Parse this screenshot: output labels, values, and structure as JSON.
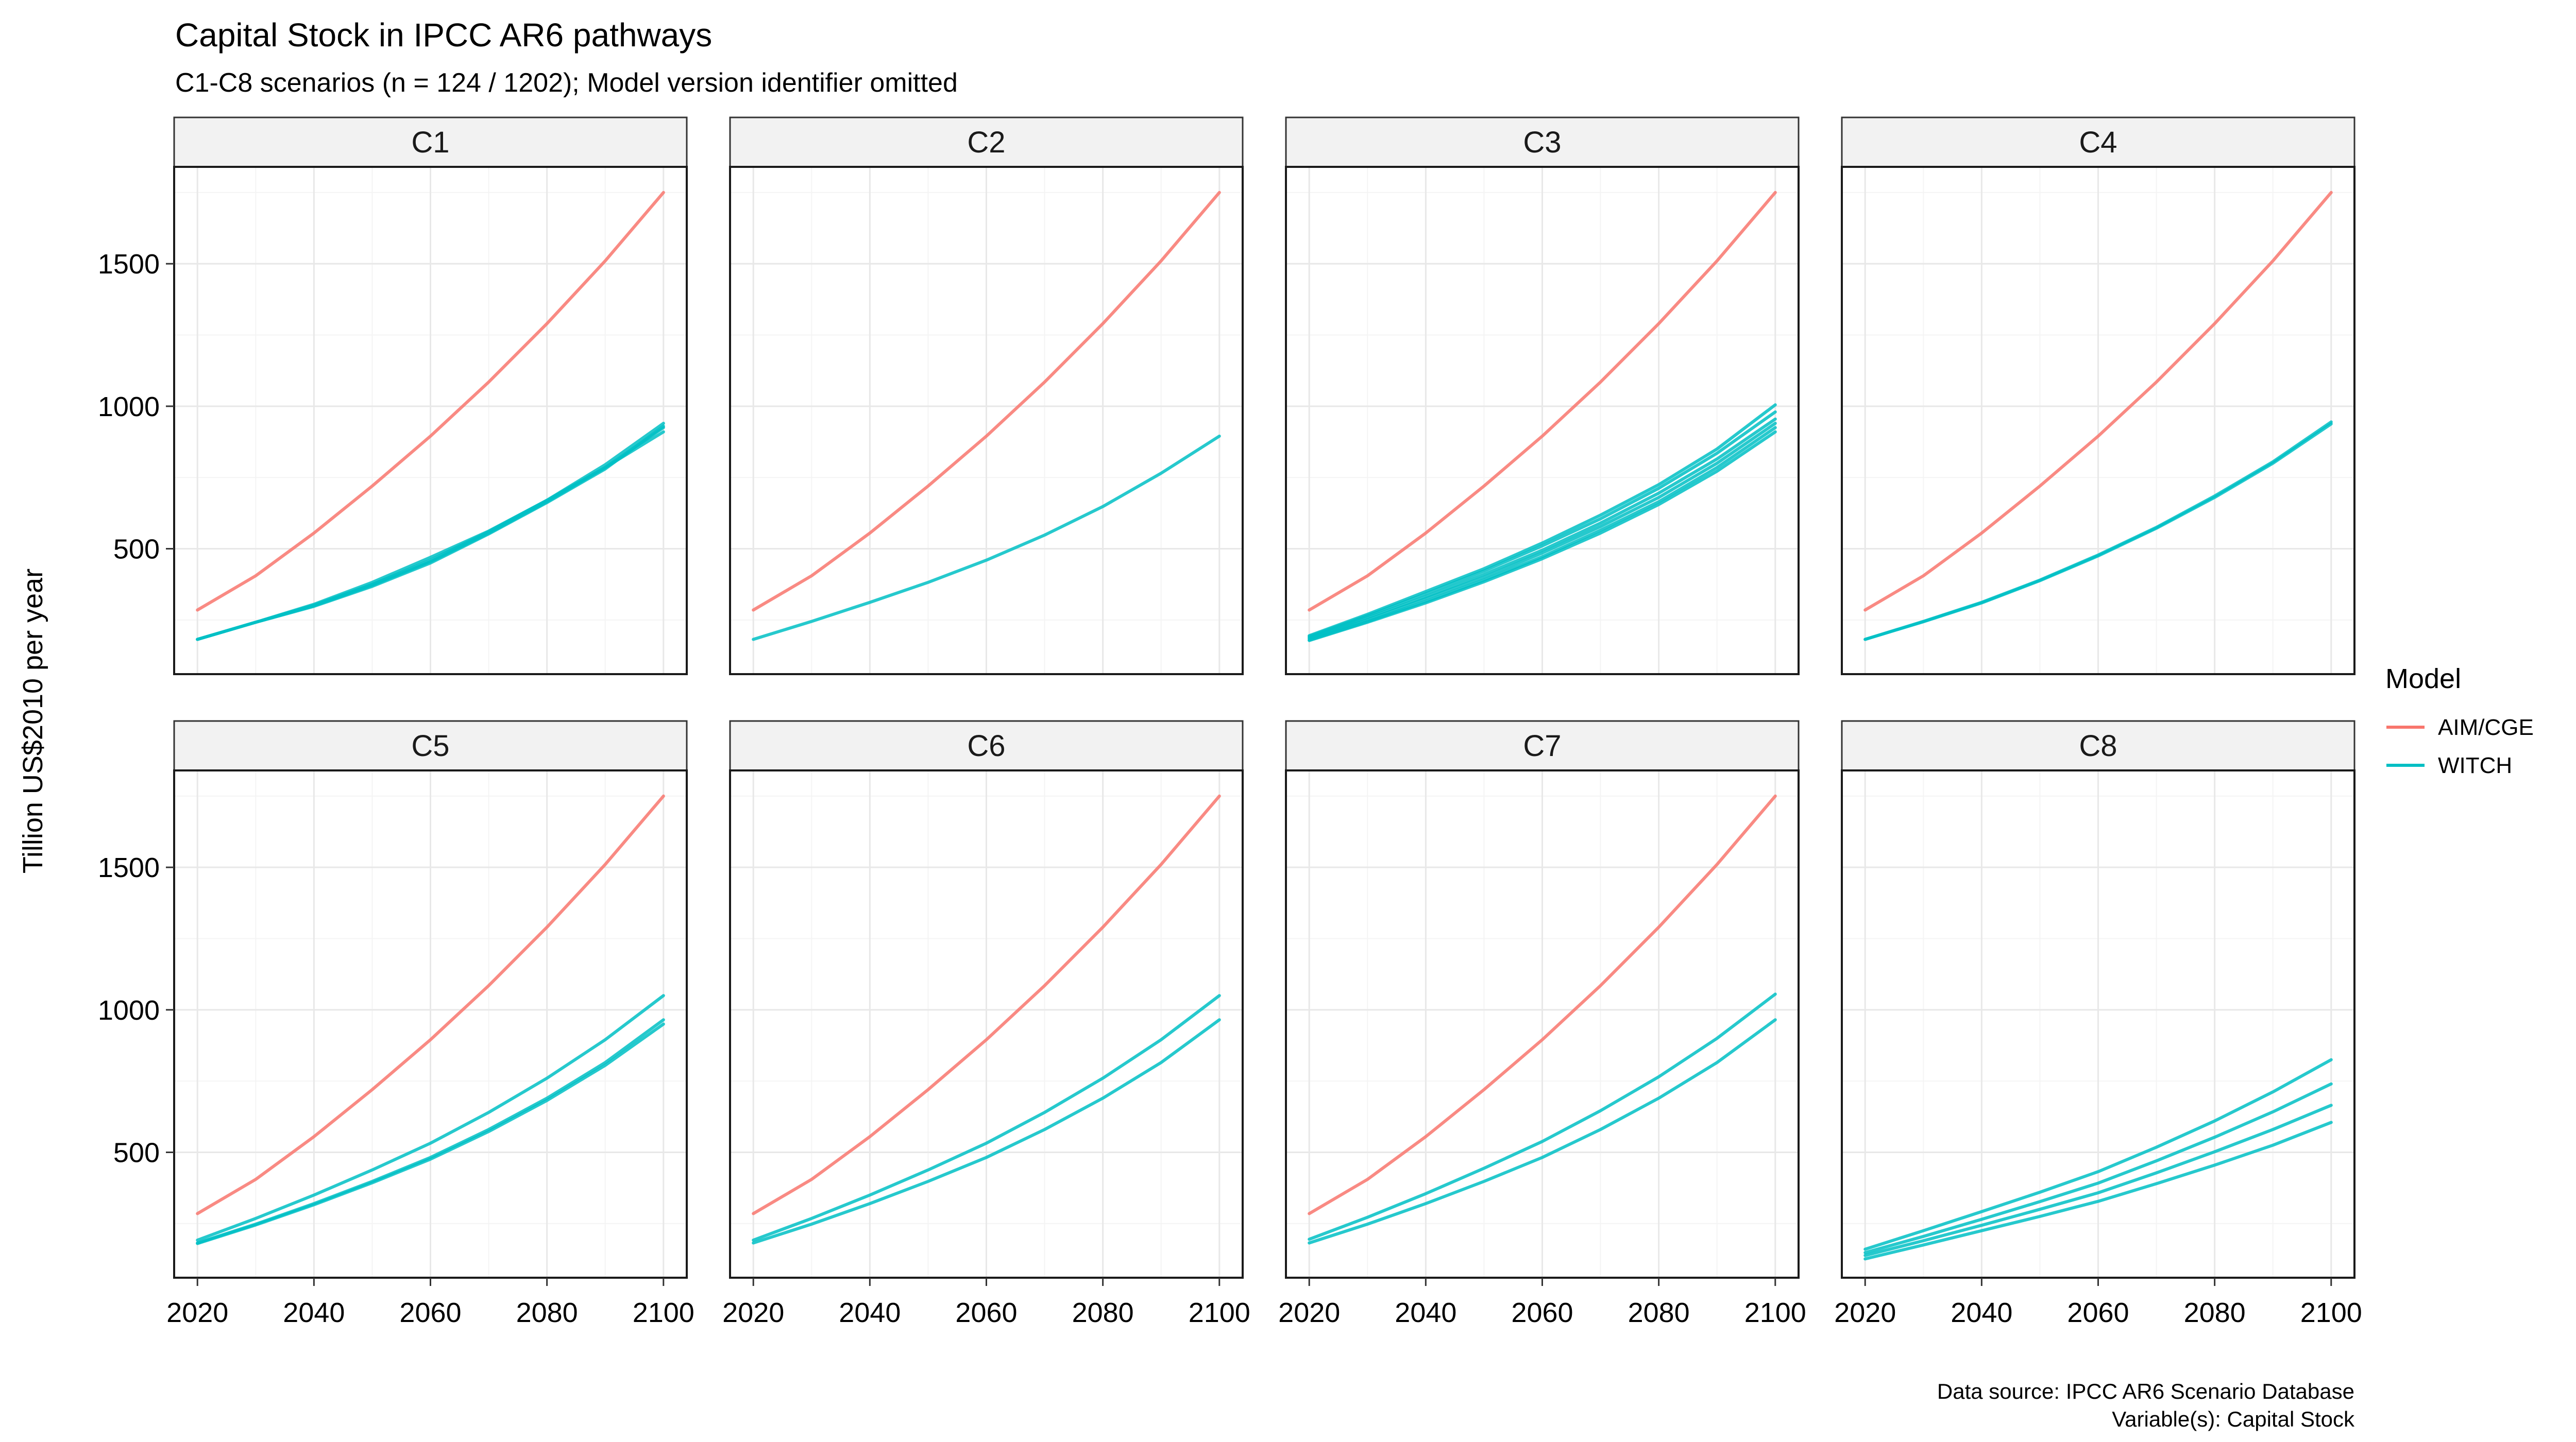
{
  "chart_data": {
    "type": "line",
    "title": "Capital Stock in IPCC AR6 pathways",
    "subtitle": "C1-C8 scenarios (n = 124 / 1202); Model version identifier omitted",
    "ylabel": "Tillion US$2010 per year",
    "xlabel": "",
    "x": [
      2020,
      2030,
      2040,
      2050,
      2060,
      2070,
      2080,
      2090,
      2100
    ],
    "xlim": [
      2016,
      2104
    ],
    "ylim": [
      60,
      1840
    ],
    "xticks": [
      "2020",
      "2040",
      "2060",
      "2080",
      "2100"
    ],
    "yticks": [
      "500",
      "1000",
      "1500"
    ],
    "grid": true,
    "legend": {
      "title": "Model",
      "placement": "right",
      "entries": [
        {
          "name": "AIM/CGE",
          "color": "#F8766D"
        },
        {
          "name": "WITCH",
          "color": "#00BFC4"
        }
      ]
    },
    "caption": [
      "Data source: IPCC AR6 Scenario Database",
      "Variable(s): Capital Stock"
    ],
    "panels": [
      {
        "label": "C1",
        "series": [
          {
            "model": "AIM/CGE",
            "values": [
              285,
              405,
              555,
              720,
              895,
              1085,
              1290,
              1510,
              1750
            ]
          },
          {
            "model": "WITCH",
            "values": [
              182,
              242,
              302,
              375,
              460,
              560,
              670,
              795,
              940
            ]
          },
          {
            "model": "WITCH",
            "values": [
              182,
              242,
              300,
              372,
              455,
              555,
              665,
              785,
              925
            ]
          },
          {
            "model": "WITCH",
            "values": [
              182,
              242,
              305,
              382,
              470,
              562,
              670,
              785,
              910
            ]
          },
          {
            "model": "WITCH",
            "values": [
              182,
              242,
              298,
              368,
              450,
              552,
              662,
              780,
              930
            ]
          }
        ]
      },
      {
        "label": "C2",
        "series": [
          {
            "model": "AIM/CGE",
            "values": [
              285,
              405,
              555,
              720,
              895,
              1085,
              1290,
              1510,
              1750
            ]
          },
          {
            "model": "WITCH",
            "values": [
              182,
              245,
              312,
              382,
              460,
              548,
              648,
              765,
              895
            ]
          }
        ]
      },
      {
        "label": "C3",
        "series": [
          {
            "model": "AIM/CGE",
            "values": [
              285,
              405,
              555,
              720,
              895,
              1085,
              1290,
              1510,
              1750
            ]
          },
          {
            "model": "WITCH",
            "values": [
              195,
              270,
              350,
              430,
              520,
              618,
              725,
              850,
              1005
            ]
          },
          {
            "model": "WITCH",
            "values": [
              192,
              265,
              342,
              422,
              510,
              605,
              712,
              835,
              980
            ]
          },
          {
            "model": "WITCH",
            "values": [
              188,
              258,
              332,
              410,
              495,
              590,
              695,
              815,
              955
            ]
          },
          {
            "model": "WITCH",
            "values": [
              185,
              252,
              325,
              400,
              485,
              578,
              680,
              800,
              940
            ]
          },
          {
            "model": "WITCH",
            "values": [
              180,
              245,
              315,
              390,
              472,
              565,
              665,
              785,
              925
            ]
          },
          {
            "model": "WITCH",
            "values": [
              178,
              242,
              310,
              384,
              465,
              555,
              655,
              772,
              910
            ]
          }
        ]
      },
      {
        "label": "C4",
        "series": [
          {
            "model": "AIM/CGE",
            "values": [
              285,
              405,
              555,
              720,
              895,
              1085,
              1290,
              1510,
              1750
            ]
          },
          {
            "model": "WITCH",
            "values": [
              182,
              245,
              312,
              390,
              478,
              575,
              685,
              805,
              945
            ]
          },
          {
            "model": "WITCH",
            "values": [
              182,
              244,
              310,
              388,
              475,
              572,
              680,
              800,
              938
            ]
          }
        ]
      },
      {
        "label": "C5",
        "series": [
          {
            "model": "AIM/CGE",
            "values": [
              285,
              405,
              555,
              720,
              895,
              1085,
              1290,
              1510,
              1750
            ]
          },
          {
            "model": "WITCH",
            "values": [
              192,
              268,
              350,
              438,
              532,
              640,
              760,
              895,
              1050
            ]
          },
          {
            "model": "WITCH",
            "values": [
              182,
              248,
              320,
              398,
              482,
              580,
              690,
              815,
              965
            ]
          },
          {
            "model": "WITCH",
            "values": [
              180,
              245,
              316,
              393,
              476,
              573,
              682,
              805,
              950
            ]
          }
        ]
      },
      {
        "label": "C6",
        "series": [
          {
            "model": "AIM/CGE",
            "values": [
              285,
              405,
              555,
              720,
              895,
              1085,
              1290,
              1510,
              1750
            ]
          },
          {
            "model": "WITCH",
            "values": [
              192,
              268,
              350,
              438,
              532,
              640,
              760,
              895,
              1050
            ]
          },
          {
            "model": "WITCH",
            "values": [
              182,
              248,
              320,
              398,
              482,
              580,
              690,
              815,
              965
            ]
          }
        ]
      },
      {
        "label": "C7",
        "series": [
          {
            "model": "AIM/CGE",
            "values": [
              285,
              405,
              555,
              720,
              895,
              1085,
              1290,
              1510,
              1750
            ]
          },
          {
            "model": "WITCH",
            "values": [
              195,
              272,
              355,
              444,
              538,
              646,
              765,
              900,
              1055
            ]
          },
          {
            "model": "WITCH",
            "values": [
              182,
              248,
              320,
              398,
              482,
              580,
              690,
              815,
              965
            ]
          }
        ]
      },
      {
        "label": "C8",
        "series": [
          {
            "model": "WITCH",
            "values": [
              160,
              225,
              292,
              360,
              432,
              518,
              610,
              712,
              825
            ]
          },
          {
            "model": "WITCH",
            "values": [
              148,
              205,
              265,
              327,
              392,
              470,
              553,
              642,
              740
            ]
          },
          {
            "model": "WITCH",
            "values": [
              138,
              190,
              244,
              300,
              358,
              428,
              502,
              580,
              665
            ]
          },
          {
            "model": "WITCH",
            "values": [
              126,
              175,
              225,
              275,
              328,
              390,
              455,
              525,
              605
            ]
          }
        ]
      }
    ]
  }
}
